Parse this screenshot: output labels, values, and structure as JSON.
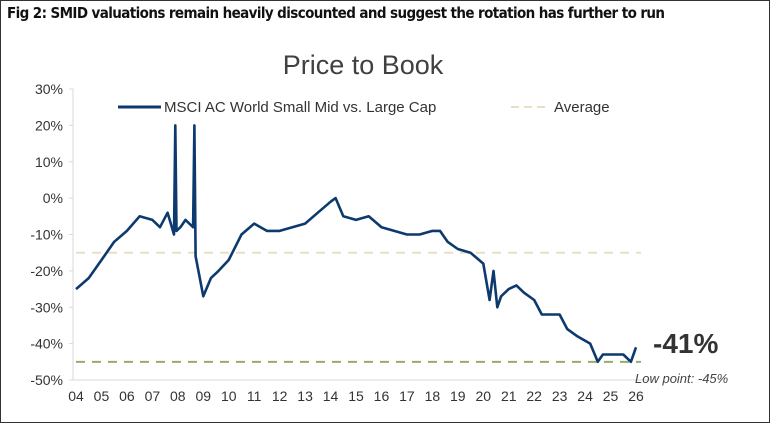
{
  "figure_caption": "Fig 2: SMID valuations remain heavily discounted and suggest the rotation has further to run",
  "chart_data": {
    "type": "line",
    "title": "Price to Book",
    "xlabel": "",
    "ylabel": "",
    "ylim": [
      -50,
      30
    ],
    "xlim": [
      2004,
      2026
    ],
    "yticks": [
      "30%",
      "20%",
      "10%",
      "0%",
      "-10%",
      "-20%",
      "-30%",
      "-40%",
      "-50%"
    ],
    "ytick_values": [
      30,
      20,
      10,
      0,
      -10,
      -20,
      -30,
      -40,
      -50
    ],
    "xticks": [
      "04",
      "05",
      "06",
      "07",
      "08",
      "09",
      "10",
      "11",
      "12",
      "13",
      "14",
      "15",
      "16",
      "17",
      "18",
      "19",
      "20",
      "21",
      "22",
      "23",
      "24",
      "25",
      "26"
    ],
    "grid": false,
    "legend_placement": "top",
    "series": [
      {
        "name": "MSCI AC World Small Mid vs. Large Cap",
        "color": "#0d3a6e",
        "style": "solid",
        "x": [
          2004.0,
          2004.5,
          2005.0,
          2005.5,
          2006.0,
          2006.5,
          2007.0,
          2007.3,
          2007.6,
          2007.85,
          2007.9,
          2007.95,
          2008.1,
          2008.3,
          2008.6,
          2008.65,
          2008.7,
          2009.0,
          2009.3,
          2009.6,
          2010.0,
          2010.5,
          2011.0,
          2011.5,
          2012.0,
          2012.5,
          2013.0,
          2013.5,
          2014.0,
          2014.2,
          2014.5,
          2015.0,
          2015.5,
          2016.0,
          2016.5,
          2017.0,
          2017.5,
          2018.0,
          2018.3,
          2018.6,
          2019.0,
          2019.5,
          2020.0,
          2020.25,
          2020.4,
          2020.55,
          2020.7,
          2021.0,
          2021.3,
          2021.6,
          2022.0,
          2022.3,
          2022.8,
          2023.0,
          2023.3,
          2023.7,
          2024.2,
          2024.5,
          2024.7,
          2025.0,
          2025.5,
          2025.8,
          2026.0
        ],
        "y": [
          -25,
          -22,
          -17,
          -12,
          -9,
          -5,
          -6,
          -8,
          -4,
          -10,
          20,
          -9,
          -8,
          -6,
          -8,
          20,
          -16,
          -27,
          -22,
          -20,
          -17,
          -10,
          -7,
          -9,
          -9,
          -8,
          -7,
          -4,
          -1,
          0,
          -5,
          -6,
          -5,
          -8,
          -9,
          -10,
          -10,
          -9,
          -9,
          -12,
          -14,
          -15,
          -18,
          -28,
          -20,
          -30,
          -27,
          -25,
          -24,
          -26,
          -28,
          -32,
          -32,
          -32,
          -36,
          -38,
          -40,
          -45,
          -43,
          -43,
          -43,
          -45,
          -41
        ]
      },
      {
        "name": "Average",
        "color": "#e8dfc8",
        "style": "dashed",
        "value": -15
      }
    ],
    "annotations": [
      {
        "text": "-41%",
        "value": -41
      },
      {
        "text": "Low point: -45%",
        "value": -45,
        "line_color": "#9aab6a"
      }
    ]
  }
}
